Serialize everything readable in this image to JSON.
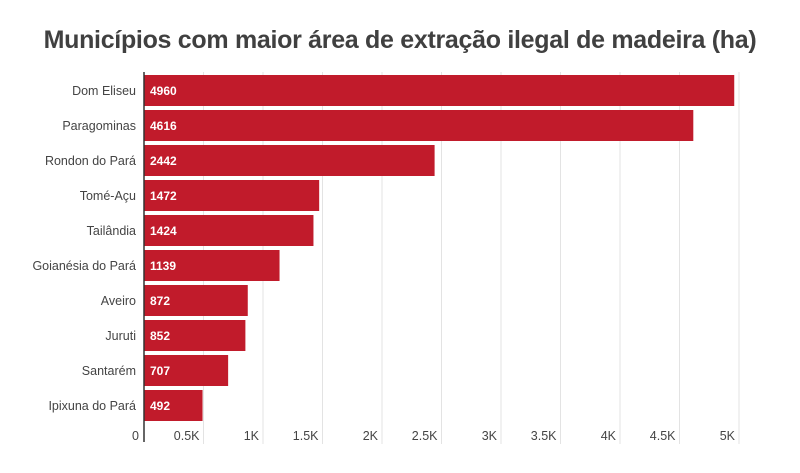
{
  "chart_data": {
    "type": "bar",
    "orientation": "horizontal",
    "title": "Municípios com maior área de extração ilegal de madeira (ha)",
    "xlabel": "",
    "ylabel": "",
    "categories": [
      "Dom Eliseu",
      "Paragominas",
      "Rondon do Pará",
      "Tomé-Açu",
      "Tailândia",
      "Goianésia do Pará",
      "Aveiro",
      "Juruti",
      "Santarém",
      "Ipixuna do Pará"
    ],
    "values": [
      4960,
      4616,
      2442,
      1472,
      1424,
      1139,
      872,
      852,
      707,
      492
    ],
    "value_labels": [
      "4960",
      "4616",
      "2442",
      "1472",
      "1424",
      "1139",
      "872",
      "852",
      "707",
      "492"
    ],
    "xlim": [
      0,
      5000
    ],
    "ticks": [
      0,
      500,
      1000,
      1500,
      2000,
      2500,
      3000,
      3500,
      4000,
      4500,
      5000
    ],
    "tick_labels": [
      "0",
      "0.5K",
      "1K",
      "1.5K",
      "2K",
      "2.5K",
      "3K",
      "3.5K",
      "4K",
      "4.5K",
      "5K"
    ],
    "grid": true,
    "legend": "none",
    "bar_color": "#c11b2b"
  }
}
